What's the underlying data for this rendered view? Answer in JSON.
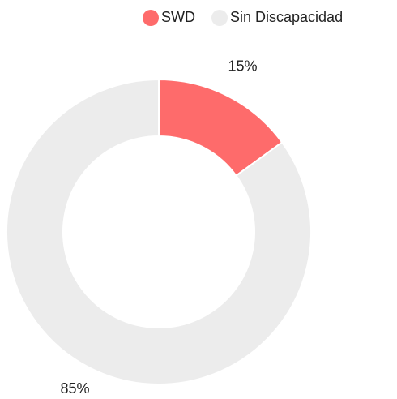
{
  "chart_data": {
    "type": "doughnut",
    "categories": [
      "SWD",
      "Sin Discapacidad"
    ],
    "values": [
      15,
      85
    ],
    "value_labels": [
      "15%",
      "85%"
    ],
    "colors": [
      "#fe6b6b",
      "#ececec"
    ],
    "legend": "top"
  }
}
